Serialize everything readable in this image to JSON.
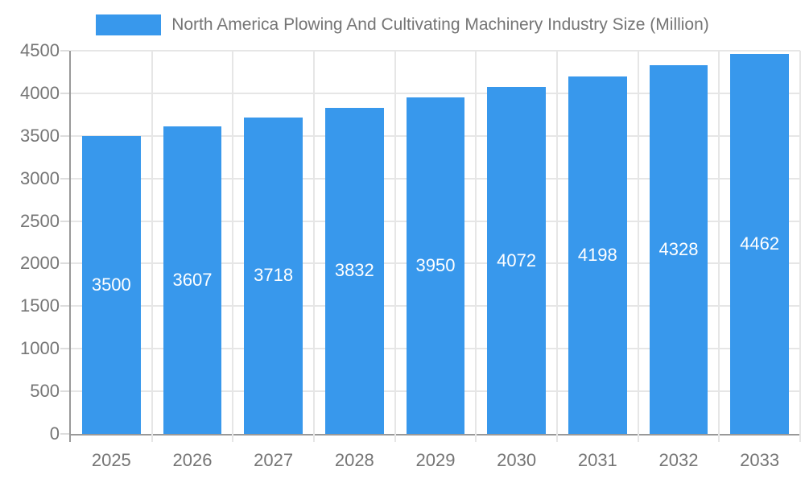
{
  "legend": {
    "label": "North America Plowing And Cultivating Machinery Industry Size (Million)"
  },
  "colors": {
    "bar": "#3898EC",
    "axis": "#999999",
    "grid": "#E6E6E6",
    "tick_text": "#757575",
    "value_label_text": "#FFFFFF",
    "background": "#FFFFFF"
  },
  "chart_data": {
    "type": "bar",
    "title": "North America Plowing And Cultivating Machinery Industry Size (Million)",
    "categories": [
      "2025",
      "2026",
      "2027",
      "2028",
      "2029",
      "2030",
      "2031",
      "2032",
      "2033"
    ],
    "values": [
      3500,
      3607,
      3718,
      3832,
      3950,
      4072,
      4198,
      4328,
      4462
    ],
    "value_labels_shown": true,
    "xlabel": "",
    "ylabel": "",
    "ylim": [
      0,
      4500
    ],
    "yticks": [
      0,
      500,
      1000,
      1500,
      2000,
      2500,
      3000,
      3500,
      4000,
      4500
    ],
    "grid": true,
    "legend_position": "top-center"
  }
}
